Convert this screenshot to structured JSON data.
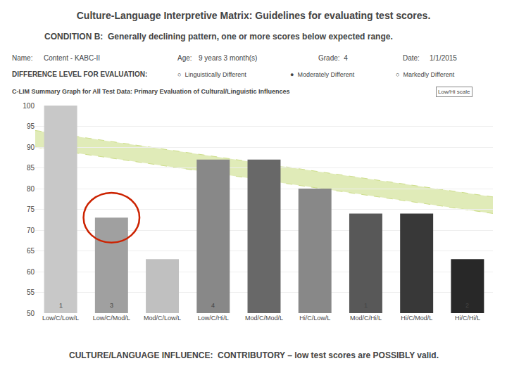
{
  "chart_data": {
    "type": "bar",
    "title": "Culture-Language Interpretive Matrix: Guidelines for evaluating test scores.",
    "subtitle": "CONDITION B:  Generally declining pattern, one or more scores below expected range.",
    "header": [
      "Name:",
      "Content - KABC-II",
      "Age:",
      "9 years 3 month(s)",
      "Grade:  4",
      "Date:",
      "1/1/2015"
    ],
    "difference_label": "DIFFERENCE LEVEL FOR EVALUATION:",
    "difference_options": [
      "○  Linguistically Different",
      "●  Moderately Different",
      "○  Markedly Different"
    ],
    "panel_title": "C-LIM Summary Graph for All Test Data: Primary Evaluation of Cultural/Linguistic Influences",
    "scale_label": "Low/Hi scale",
    "categories": [
      "Low/C/Low/L",
      "Low/C/Mod/L",
      "Mod/C/Low/L",
      "Low/C/Hi/L",
      "Mod/C/Mod/L",
      "Hi/C/Low/L",
      "Mod/C/Hi/L",
      "Hi/C/Mod/L",
      "Hi/C/Hi/L"
    ],
    "values": [
      100,
      73,
      63,
      87,
      87,
      80,
      74,
      74,
      63
    ],
    "colors": [
      "#C8C8C8",
      "#A0A0A0",
      "#C0C0C0",
      "#888888",
      "#686868",
      "#888888",
      "#585858",
      "#383838",
      "#282828"
    ],
    "ylim": [
      50,
      100
    ],
    "yticks": [
      50,
      55,
      60,
      65,
      70,
      75,
      80,
      85,
      90,
      95,
      100
    ],
    "grid": true,
    "band": {
      "upper": [
        94,
        78
      ],
      "lower": [
        90,
        74
      ],
      "color": "#CCDD88"
    },
    "highlight": {
      "category": "Low/C/Mod/L",
      "value": 73,
      "span": 12,
      "color": "#CC2200"
    },
    "annotations": [
      {
        "text": "1",
        "category": "Low/C/Low/L"
      },
      {
        "text": "3",
        "category": "Low/C/Mod/L"
      },
      {
        "text": "4",
        "category": "Low/C/Hi/L"
      },
      {
        "text": "1",
        "category": "Mod/C/Hi/L"
      },
      {
        "text": "2",
        "category": "Hi/C/Hi/L"
      }
    ],
    "footer": [
      "CULTURE/LANGUAGE INFLUENCE:",
      "  CONTRIBUTORY – low test scores are POSSIBLY valid."
    ]
  }
}
